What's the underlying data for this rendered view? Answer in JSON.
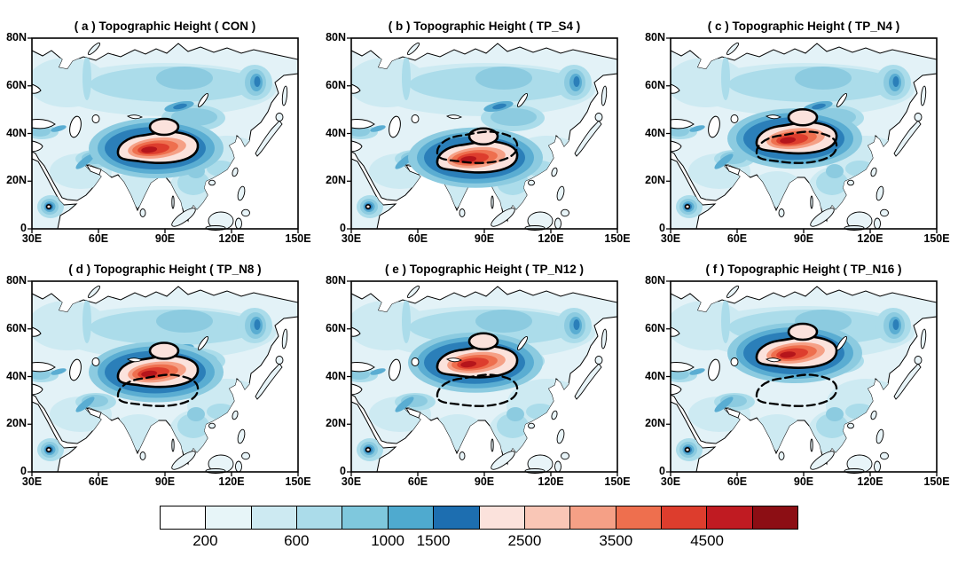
{
  "figure_title": "Topographic Height",
  "panels": [
    {
      "id": "a",
      "title": "( a ) Topographic Height ( CON )",
      "experiment": "CON",
      "shift_north_deg": 0,
      "show_con_outline": false
    },
    {
      "id": "b",
      "title": "( b ) Topographic Height ( TP_S4 )",
      "experiment": "TP_S4",
      "shift_north_deg": -4,
      "show_con_outline": true
    },
    {
      "id": "c",
      "title": "( c ) Topographic Height ( TP_N4 )",
      "experiment": "TP_N4",
      "shift_north_deg": 4,
      "show_con_outline": true
    },
    {
      "id": "d",
      "title": "( d ) Topographic Height ( TP_N8 )",
      "experiment": "TP_N8",
      "shift_north_deg": 8,
      "show_con_outline": true
    },
    {
      "id": "e",
      "title": "( e ) Topographic Height ( TP_N12 )",
      "experiment": "TP_N12",
      "shift_north_deg": 12,
      "show_con_outline": true
    },
    {
      "id": "f",
      "title": "( f ) Topographic Height ( TP_N16 )",
      "experiment": "TP_N16",
      "shift_north_deg": 16,
      "show_con_outline": true
    }
  ],
  "axes": {
    "x_ticks": [
      "30E",
      "60E",
      "90E",
      "120E",
      "150E"
    ],
    "y_ticks": [
      "80N",
      "60N",
      "40N",
      "20N",
      "0"
    ]
  },
  "chart_data": {
    "type": "heatmap",
    "title": "Topographic Height",
    "panel_layout": "2 rows x 3 columns",
    "panels": [
      {
        "label": "( a )",
        "experiment": "CON",
        "tp_meridional_shift_deg": 0
      },
      {
        "label": "( b )",
        "experiment": "TP_S4",
        "tp_meridional_shift_deg": -4
      },
      {
        "label": "( c )",
        "experiment": "TP_N4",
        "tp_meridional_shift_deg": 4
      },
      {
        "label": "( d )",
        "experiment": "TP_N8",
        "tp_meridional_shift_deg": 8
      },
      {
        "label": "( e )",
        "experiment": "TP_N12",
        "tp_meridional_shift_deg": 12
      },
      {
        "label": "( f )",
        "experiment": "TP_N16",
        "tp_meridional_shift_deg": 16
      }
    ],
    "x_axis": {
      "ticks": [
        "30E",
        "60E",
        "90E",
        "120E",
        "150E"
      ],
      "range_deg": [
        30,
        150
      ],
      "unit": "degrees east"
    },
    "y_axis": {
      "ticks": [
        "0",
        "20N",
        "40N",
        "60N",
        "80N"
      ],
      "range_deg": [
        0,
        80
      ],
      "unit": "degrees north"
    },
    "colorbar": {
      "tick_labels": [
        "200",
        "600",
        "1000",
        "1500",
        "2500",
        "3500",
        "4500"
      ],
      "levels": [
        200,
        400,
        600,
        800,
        1000,
        1500,
        2000,
        2500,
        3000,
        3500,
        4000,
        4500,
        5000
      ],
      "colors": [
        "#ffffff",
        "#e7f5f8",
        "#cdeaf2",
        "#abdcea",
        "#7fc8dd",
        "#4faacf",
        "#1d6eb0",
        "#fbe2dc",
        "#f9c6b6",
        "#f5a086",
        "#ee6f4e",
        "#dd3d2d",
        "#c01b22",
        "#8c0e14"
      ],
      "label_positions_pct": [
        7.14,
        21.43,
        35.71,
        42.86,
        57.14,
        71.43,
        85.71
      ]
    },
    "contours": {
      "solid": "thick solid black contour outlining high terrain (~1500 m) in each experiment",
      "dashed": "dashed black contour marking the CON plateau extent, shown in shifted-TP experiments"
    }
  }
}
